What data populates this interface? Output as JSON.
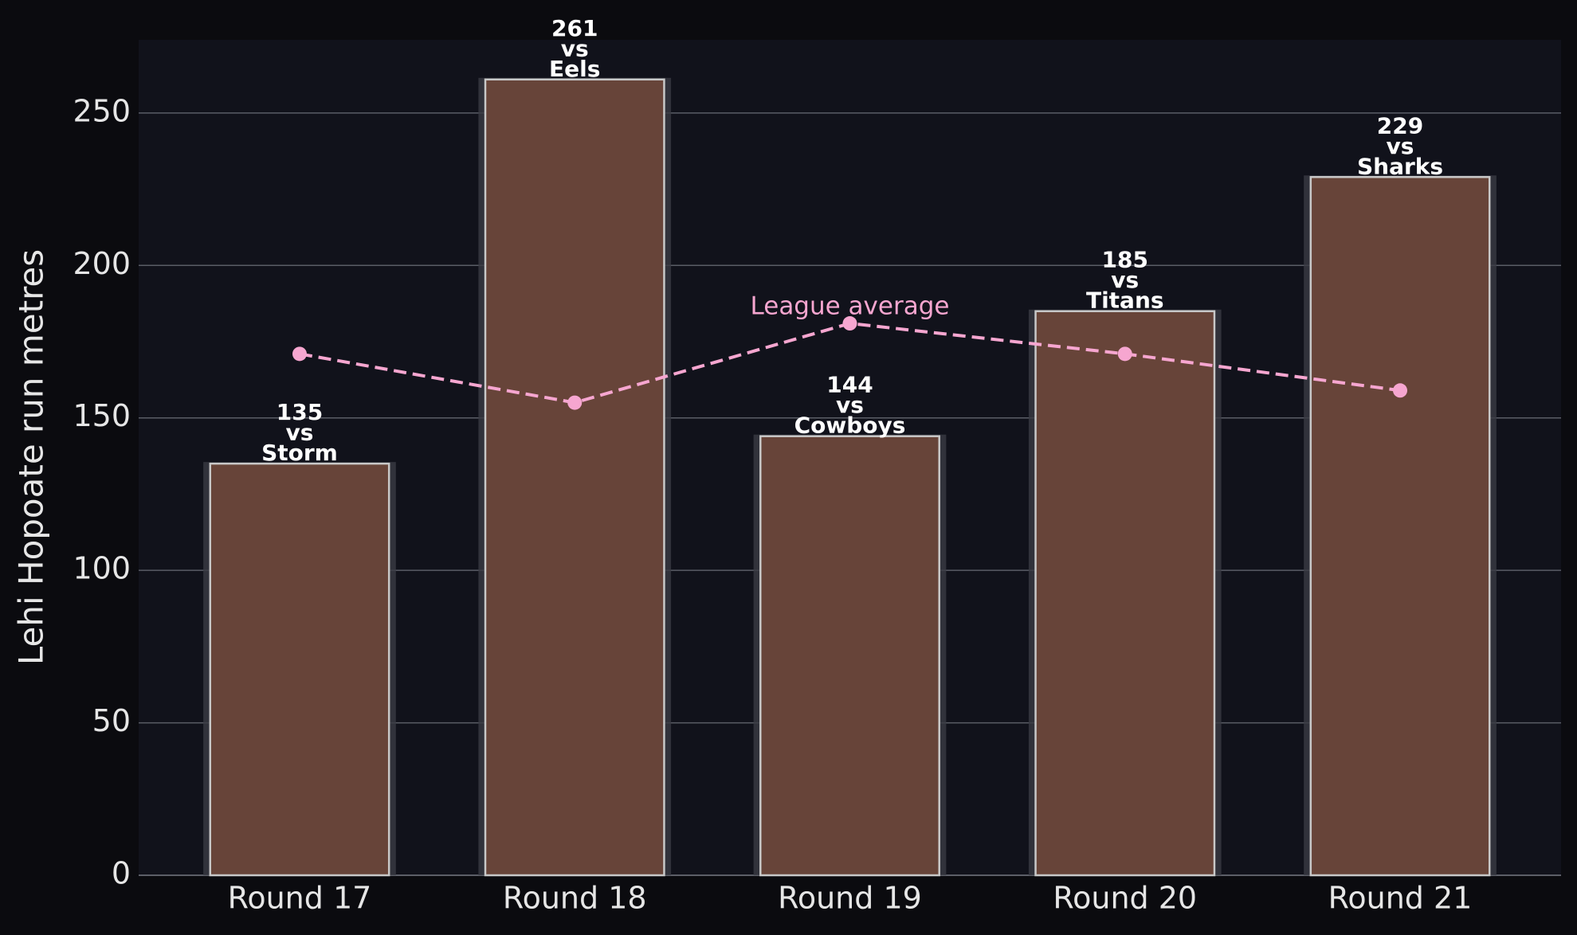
{
  "chart_data": {
    "type": "bar",
    "ylabel": "Lehi Hopoate run metres",
    "categories": [
      "Round 17",
      "Round 18",
      "Round 19",
      "Round 20",
      "Round 21"
    ],
    "values": [
      135,
      261,
      144,
      185,
      229
    ],
    "value_labels": [
      "135\nvs\nStorm",
      "261\nvs\nEels",
      "144\nvs\nCowboys",
      "185\nvs\nTitans",
      "229\nvs\nSharks"
    ],
    "color": "#674439",
    "line": {
      "name": "League average",
      "values": [
        171,
        155,
        181,
        171,
        159
      ],
      "color": "#f6a6d0"
    },
    "ylim": [
      0,
      274
    ],
    "yticks": [
      0,
      50,
      100,
      150,
      200,
      250
    ],
    "grid": true
  }
}
